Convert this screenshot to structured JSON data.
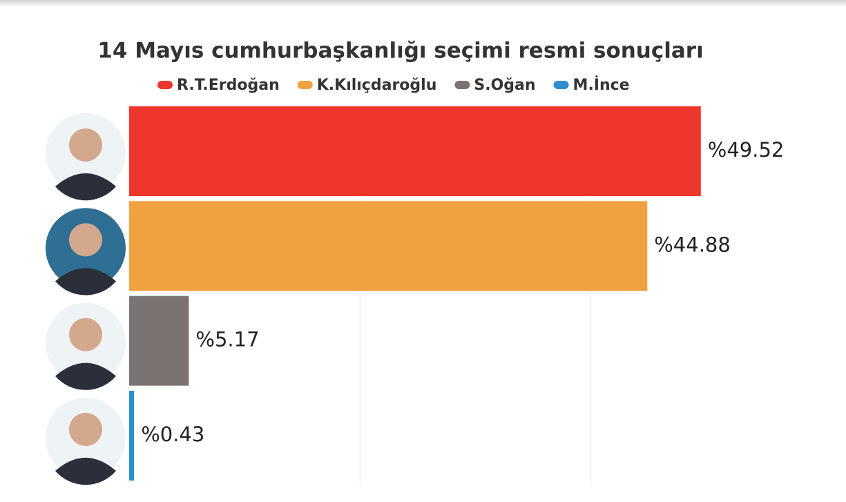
{
  "chart_data": {
    "type": "bar",
    "orientation": "horizontal",
    "title": "14 Mayıs cumhurbaşkanlığı seçimi resmi sonuçları",
    "categories": [
      "R.T.Erdoğan",
      "K.Kılıçdaroğlu",
      "S.Oğan",
      "M.İnce"
    ],
    "values": [
      49.52,
      44.88,
      5.17,
      0.43
    ],
    "value_labels": [
      "%49.52",
      "%44.88",
      "%5.17",
      "%0.43"
    ],
    "colors": [
      "#ef362c",
      "#f0a142",
      "#7b7372",
      "#2d8fcf"
    ],
    "xlim": [
      0,
      60
    ],
    "xticks": [
      20,
      40
    ],
    "grid": true
  }
}
